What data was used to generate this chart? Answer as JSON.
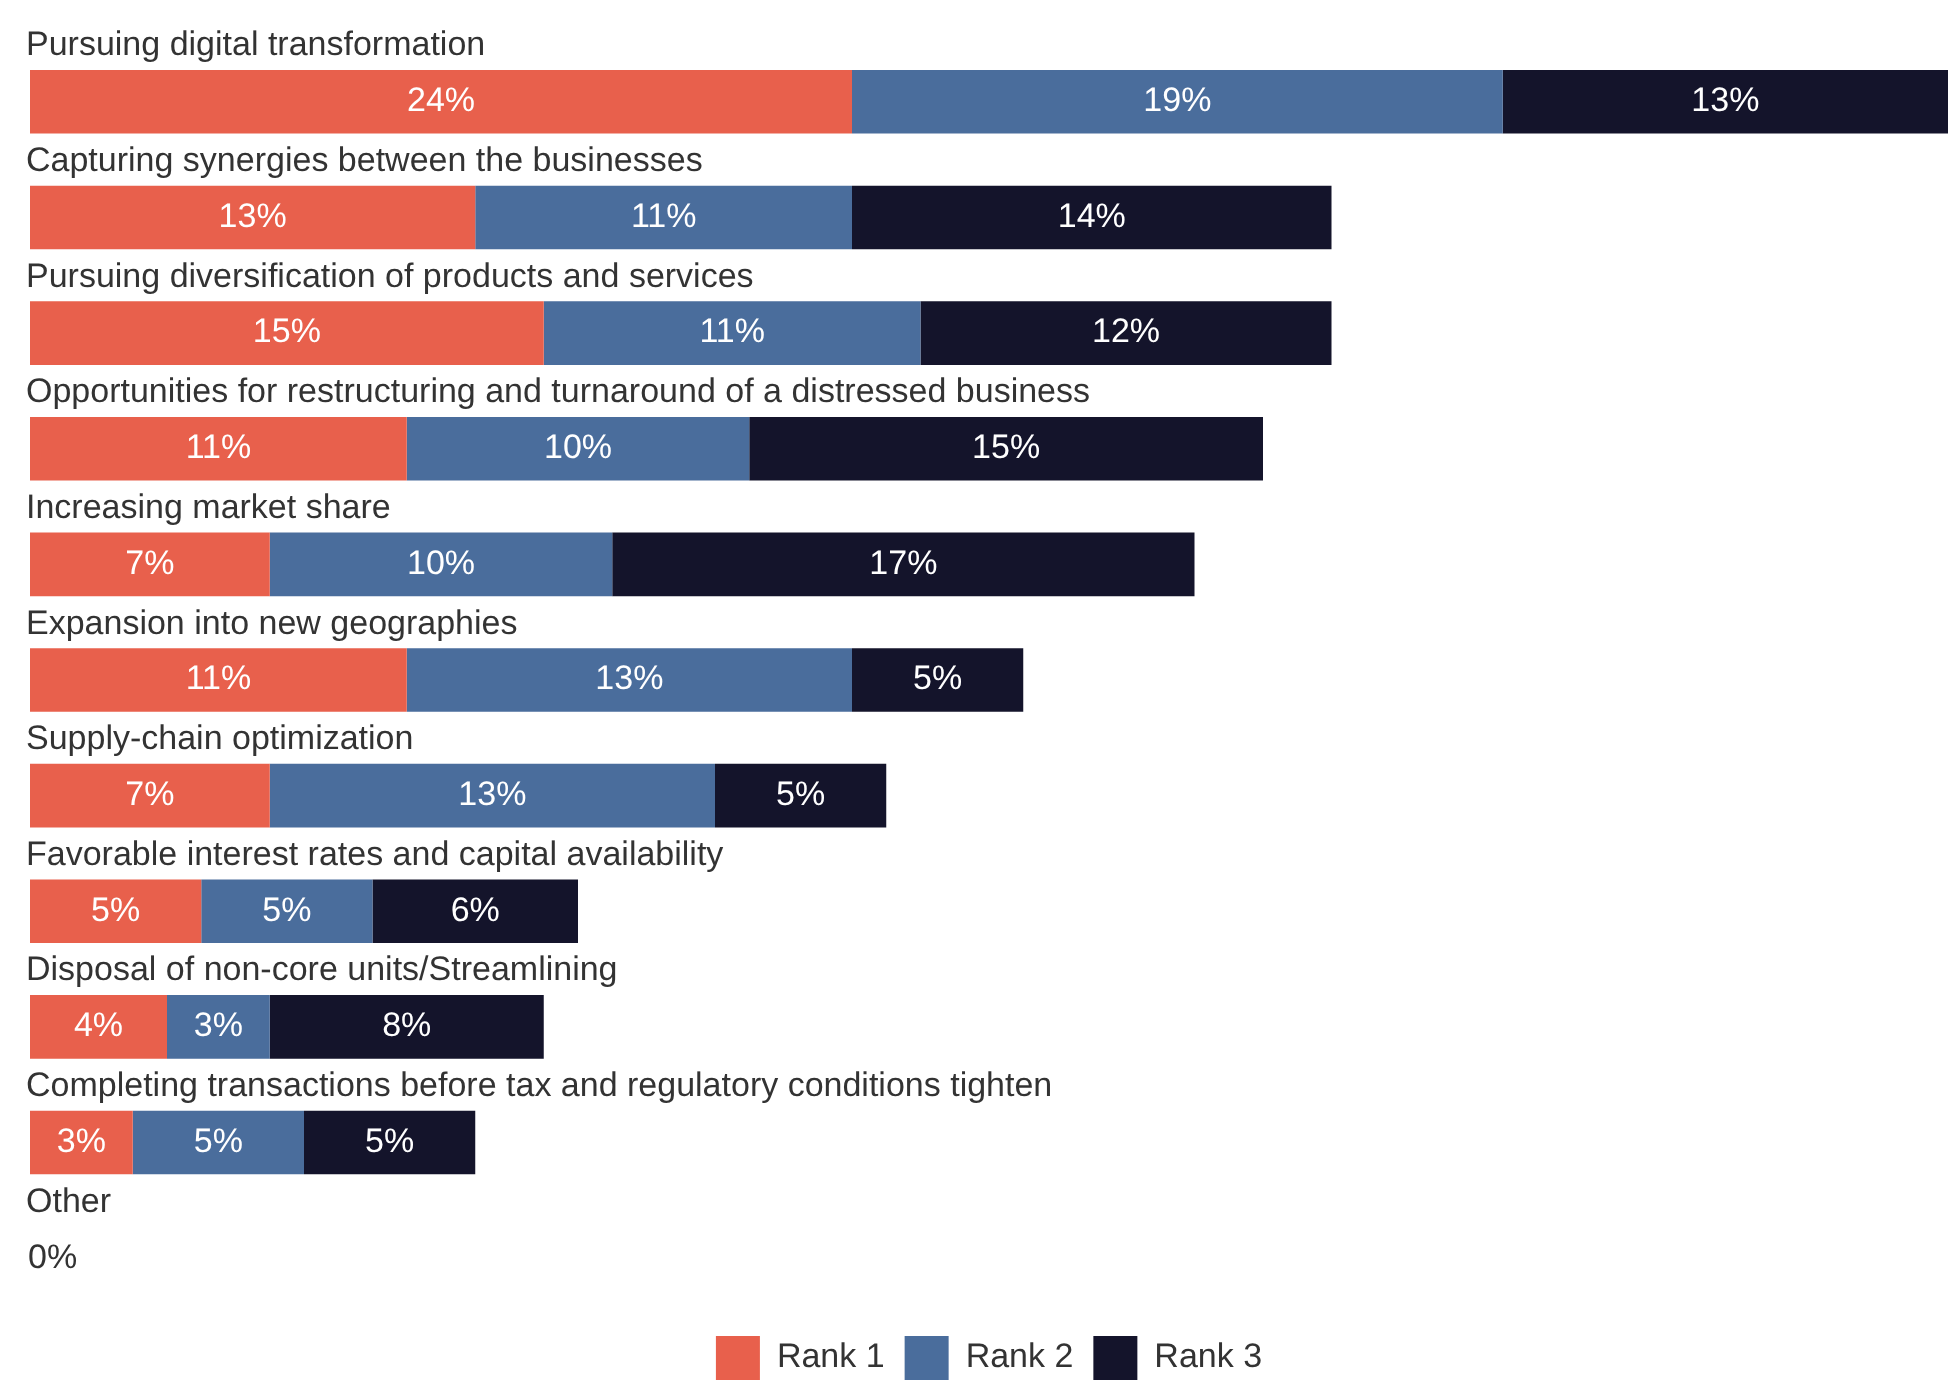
{
  "chart_data": {
    "type": "bar",
    "orientation": "horizontal",
    "stacked": true,
    "categories": [
      "Pursuing digital transformation",
      "Capturing synergies between the businesses",
      "Pursuing diversification of products and services",
      "Opportunities for restructuring and turnaround of a distressed business",
      "Increasing market share",
      "Expansion into new geographies",
      "Supply-chain optimization",
      "Favorable interest rates and capital availability",
      "Disposal of non-core units/Streamlining",
      "Completing transactions before tax and regulatory conditions tighten",
      "Other"
    ],
    "series": [
      {
        "name": "Rank 1",
        "color": "#e8604c",
        "values": [
          24,
          13,
          15,
          11,
          7,
          11,
          7,
          5,
          4,
          3,
          0
        ],
        "value_labels": [
          "24%",
          "13%",
          "15%",
          "11%",
          "7%",
          "11%",
          "7%",
          "5%",
          "4%",
          "3%",
          "0%"
        ]
      },
      {
        "name": "Rank 2",
        "color": "#4a6d9c",
        "values": [
          19,
          11,
          11,
          10,
          10,
          13,
          13,
          5,
          3,
          5,
          0
        ],
        "value_labels": [
          "19%",
          "11%",
          "11%",
          "10%",
          "10%",
          "13%",
          "13%",
          "5%",
          "3%",
          "5%",
          null
        ]
      },
      {
        "name": "Rank 3",
        "color": "#14142b",
        "values": [
          13,
          14,
          12,
          15,
          17,
          5,
          5,
          6,
          8,
          5,
          0
        ],
        "value_labels": [
          "13%",
          "14%",
          "12%",
          "15%",
          "17%",
          "5%",
          "5%",
          "6%",
          "8%",
          "5%",
          null
        ]
      }
    ],
    "xlim": [
      0,
      56
    ],
    "legend": "bottom"
  }
}
